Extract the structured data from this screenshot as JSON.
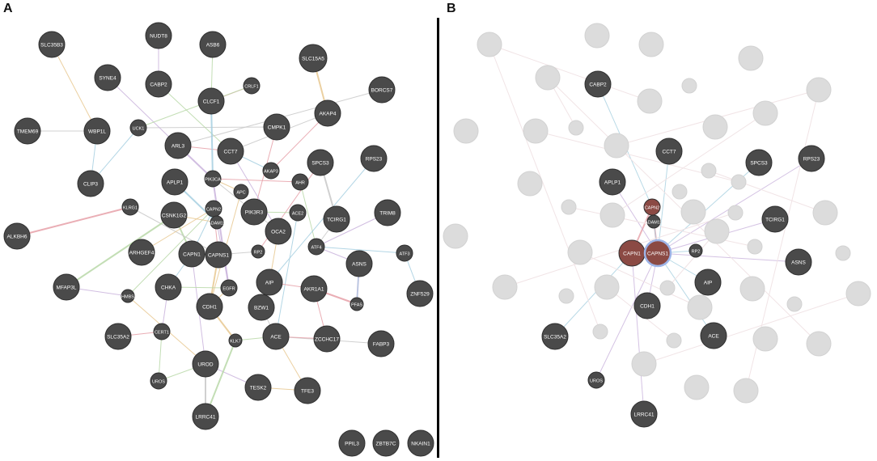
{
  "panels": [
    {
      "letter": "A"
    },
    {
      "letter": "B"
    }
  ],
  "colors": {
    "node_fill": "#4a4a4a",
    "node_stroke": "#2e2e2e",
    "node_label": "#ffffff",
    "faded_node": "#dcdcdc",
    "highlight_node": "#8b4a44",
    "highlight_ring": "#9db4e8",
    "divider": "#000000",
    "edge_colors": [
      "#c8c8c8",
      "#e6a0a8",
      "#a6cfe0",
      "#c9b3dc",
      "#b8d8a8",
      "#e8c890"
    ]
  },
  "network_a": {
    "nodes": [
      "SLC35B3",
      "NUDT8",
      "ASB6",
      "SYNE4",
      "CABP2",
      "SLC15A5",
      "CRLF1",
      "BORCS7",
      "CLCF1",
      "TMEM69",
      "WBP1L",
      "UCK1",
      "CMPK1",
      "AKAP4",
      "ARL3",
      "CCT7",
      "SPCS3",
      "RPS23",
      "CLIP3",
      "APLP1",
      "PIK3CA",
      "AKAP3",
      "AHR",
      "APC",
      "KLRG1",
      "CAPN2",
      "CSNK1G2",
      "ADAM15",
      "PIK3R3",
      "ACE2",
      "TCIRG1",
      "TRIM8",
      "ALKBH6",
      "OCA2",
      "ATF4",
      "ATF3",
      "ARHGEF4",
      "CAPN1",
      "CAPNS1",
      "RP2",
      "ASNS",
      "MFAP3L",
      "HMBS",
      "CHKA",
      "EGFR",
      "AIP",
      "AKR1A1",
      "ZNF529",
      "CDH1",
      "BZW1",
      "PFAS",
      "SLC35A2",
      "CERT1",
      "KLK7",
      "ACE",
      "ZCCHC17",
      "FABP3",
      "UROD",
      "UROS",
      "TESK2",
      "TFE3",
      "LRRC41",
      "PPIL3",
      "ZBTB7C",
      "NKAIN1"
    ]
  },
  "network_b": {
    "highlighted_nodes": [
      "CAPN1",
      "CAPN2",
      "CAPNS1"
    ],
    "labeled_nodes": [
      "CABP2",
      "CCT7",
      "SPCS3",
      "RPS23",
      "APLP1",
      "CAPN2",
      "ADAM15",
      "TCIRG1",
      "CAPN1",
      "CAPNS1",
      "RP2",
      "ASNS",
      "AIP",
      "CDH1",
      "SLC35A2",
      "ACE",
      "UROS",
      "LRRC41"
    ]
  }
}
